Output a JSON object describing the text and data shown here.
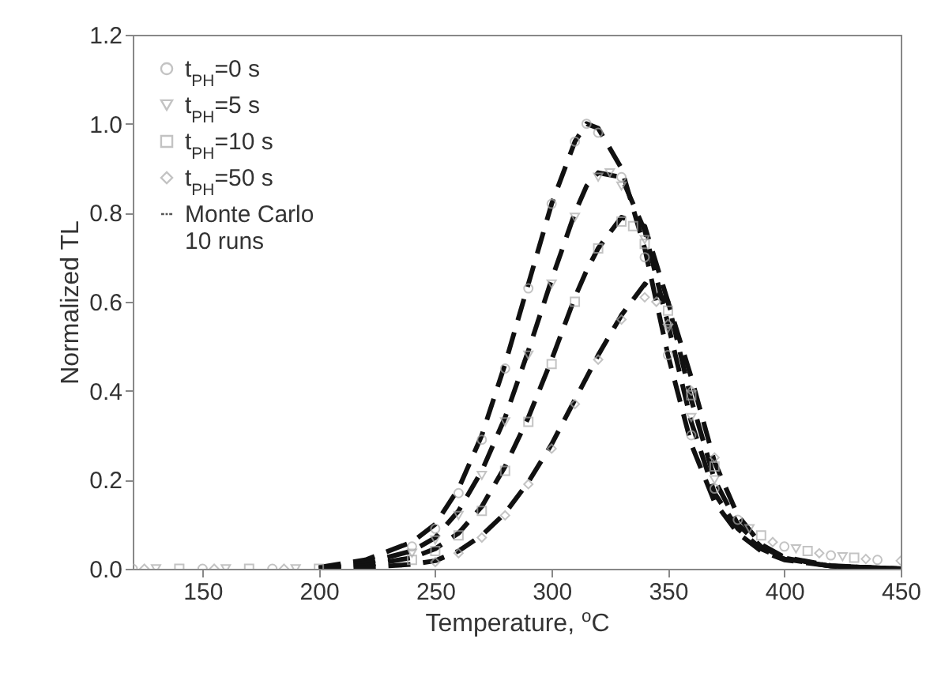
{
  "chart_data": {
    "type": "scatter",
    "xlabel": "Temperature, $^{o}$C",
    "ylabel": "Normalized TL",
    "xlim": [
      120,
      450
    ],
    "xticks": [
      150,
      200,
      250,
      300,
      350,
      400,
      450
    ],
    "ylim": [
      0,
      1.2
    ],
    "yticks": [
      {
        "value": 0,
        "label": "0.0"
      },
      0.2,
      0.4,
      0.6,
      0.8,
      {
        "value": 1,
        "label": "1.0"
      },
      1.2
    ],
    "legend": "top left",
    "series": [
      {
        "name": "t$_{PH}$=0 s",
        "marker": "circle",
        "color": "#aaaaaa",
        "x": [
          120,
          150,
          180,
          240,
          250,
          260,
          270,
          280,
          290,
          300,
          310,
          315,
          320,
          330,
          340,
          350,
          360,
          370,
          380,
          400,
          420,
          440
        ],
        "values": [
          0,
          0,
          0,
          0.05,
          0.09,
          0.17,
          0.29,
          0.45,
          0.63,
          0.82,
          0.96,
          1.0,
          0.98,
          0.88,
          0.7,
          0.48,
          0.3,
          0.18,
          0.11,
          0.05,
          0.03,
          0.02
        ]
      },
      {
        "name": "t$_{PH}$=5 s",
        "marker": "triangle",
        "color": "#aaaaaa",
        "x": [
          130,
          160,
          190,
          240,
          250,
          260,
          270,
          280,
          290,
          300,
          310,
          320,
          325,
          330,
          340,
          350,
          360,
          370,
          385,
          405,
          425
        ],
        "values": [
          0,
          0,
          0,
          0.035,
          0.065,
          0.12,
          0.21,
          0.33,
          0.48,
          0.64,
          0.79,
          0.88,
          0.89,
          0.86,
          0.74,
          0.54,
          0.34,
          0.2,
          0.09,
          0.045,
          0.027
        ]
      },
      {
        "name": "t$_{PH}$=10 s",
        "marker": "square",
        "color": "#aaaaaa",
        "x": [
          140,
          170,
          200,
          240,
          250,
          260,
          270,
          280,
          290,
          300,
          310,
          320,
          330,
          335,
          340,
          350,
          360,
          370,
          390,
          410,
          430
        ],
        "values": [
          0,
          0,
          0,
          0.02,
          0.04,
          0.075,
          0.13,
          0.22,
          0.33,
          0.46,
          0.6,
          0.72,
          0.78,
          0.77,
          0.73,
          0.58,
          0.39,
          0.23,
          0.075,
          0.04,
          0.025
        ]
      },
      {
        "name": "t$_{PH}$=50 s",
        "marker": "diamond",
        "color": "#aaaaaa",
        "x": [
          125,
          155,
          185,
          250,
          260,
          270,
          280,
          290,
          300,
          310,
          320,
          330,
          340,
          345,
          350,
          360,
          370,
          395,
          415,
          435,
          450
        ],
        "values": [
          0,
          0,
          0,
          0.015,
          0.035,
          0.07,
          0.12,
          0.19,
          0.27,
          0.37,
          0.47,
          0.56,
          0.61,
          0.6,
          0.55,
          0.4,
          0.25,
          0.06,
          0.035,
          0.022,
          0.018
        ]
      },
      {
        "name": "Monte Carlo\n10 runs",
        "type": "line",
        "marker": "none",
        "line_style": "dashed",
        "color": "#111111",
        "x": [
          200,
          220,
          240,
          250,
          260,
          270,
          280,
          290,
          300,
          310,
          315,
          320,
          330,
          340,
          350,
          360,
          370,
          380,
          390,
          400,
          420,
          450
        ],
        "values": [
          0.003,
          0.02,
          0.06,
          0.1,
          0.18,
          0.3,
          0.46,
          0.64,
          0.82,
          0.96,
          1.0,
          0.99,
          0.9,
          0.72,
          0.48,
          0.28,
          0.15,
          0.08,
          0.04,
          0.02,
          0.006,
          0.0
        ]
      },
      {
        "type": "line",
        "marker": "none",
        "line_style": "dashed",
        "color": "#111111",
        "x": [
          200,
          220,
          240,
          250,
          260,
          270,
          280,
          290,
          300,
          310,
          315,
          320,
          330,
          340,
          350,
          360,
          370,
          380,
          390,
          400,
          420,
          450
        ],
        "values": [
          0.002,
          0.013,
          0.04,
          0.07,
          0.13,
          0.22,
          0.34,
          0.49,
          0.65,
          0.8,
          0.86,
          0.89,
          0.88,
          0.76,
          0.55,
          0.33,
          0.17,
          0.09,
          0.045,
          0.022,
          0.006,
          0.0
        ]
      },
      {
        "type": "line",
        "marker": "none",
        "line_style": "dashed",
        "color": "#111111",
        "x": [
          200,
          220,
          240,
          250,
          260,
          270,
          280,
          290,
          300,
          310,
          315,
          320,
          330,
          340,
          350,
          360,
          370,
          380,
          390,
          400,
          420,
          450
        ],
        "values": [
          0.001,
          0.007,
          0.025,
          0.045,
          0.08,
          0.14,
          0.23,
          0.34,
          0.47,
          0.61,
          0.67,
          0.72,
          0.79,
          0.77,
          0.6,
          0.38,
          0.2,
          0.1,
          0.05,
          0.024,
          0.006,
          0.0
        ]
      },
      {
        "type": "line",
        "marker": "none",
        "line_style": "dashed",
        "color": "#111111",
        "x": [
          200,
          220,
          240,
          250,
          260,
          270,
          280,
          290,
          300,
          310,
          315,
          320,
          330,
          340,
          350,
          360,
          370,
          380,
          390,
          400,
          420,
          450
        ],
        "values": [
          0.0,
          0.003,
          0.01,
          0.018,
          0.04,
          0.075,
          0.125,
          0.195,
          0.28,
          0.38,
          0.43,
          0.48,
          0.57,
          0.64,
          0.6,
          0.43,
          0.24,
          0.12,
          0.055,
          0.026,
          0.007,
          0.0
        ]
      }
    ]
  }
}
